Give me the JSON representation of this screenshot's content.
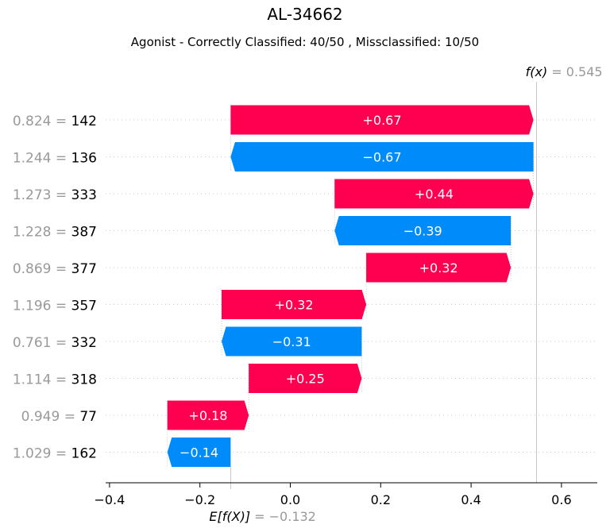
{
  "chart_data": {
    "type": "waterfall",
    "title": "AL-34662",
    "subtitle": "Agonist - Correctly Classified: 40/50 , Missclassified: 10/50",
    "base_value": -0.132,
    "base_value_label": "= −0.132",
    "base_label": "E[f(X)]",
    "fx": 0.545,
    "fx_value_label": "= 0.545",
    "fx_label": "f(x)",
    "xlim": [
      -0.41,
      0.68
    ],
    "xticks": [
      -0.4,
      -0.2,
      0.0,
      0.2,
      0.4,
      0.6
    ],
    "xtick_labels": [
      "−0.4",
      "−0.2",
      "0.0",
      "0.2",
      "0.4",
      "0.6"
    ],
    "grid": false,
    "colors": {
      "positive": "#ff0051",
      "negative": "#008bfb",
      "value_text": "#999999"
    },
    "features": [
      {
        "value": "0.824 =",
        "name": "142",
        "shap": 0.67,
        "label": "+0.67"
      },
      {
        "value": "1.244 =",
        "name": "136",
        "shap": -0.67,
        "label": "−0.67"
      },
      {
        "value": "1.273 =",
        "name": "333",
        "shap": 0.44,
        "label": "+0.44"
      },
      {
        "value": "1.228 =",
        "name": "387",
        "shap": -0.39,
        "label": "−0.39"
      },
      {
        "value": "0.869 =",
        "name": "377",
        "shap": 0.32,
        "label": "+0.32"
      },
      {
        "value": "1.196 =",
        "name": "357",
        "shap": 0.32,
        "label": "+0.32"
      },
      {
        "value": "0.761 =",
        "name": "332",
        "shap": -0.31,
        "label": "−0.31"
      },
      {
        "value": "1.114 =",
        "name": "318",
        "shap": 0.25,
        "label": "+0.25"
      },
      {
        "value": "0.949 =",
        "name": "77",
        "shap": 0.18,
        "label": "+0.18"
      },
      {
        "value": "1.029 =",
        "name": "162",
        "shap": -0.14,
        "label": "−0.14"
      }
    ]
  }
}
